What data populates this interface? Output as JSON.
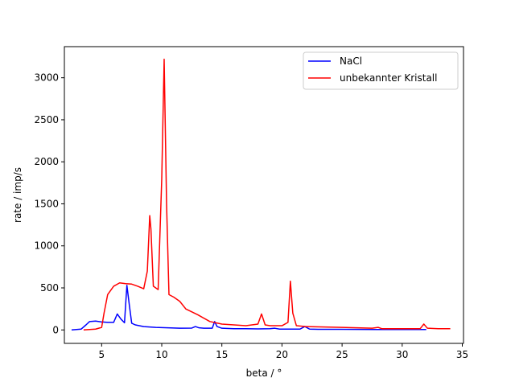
{
  "chart_data": {
    "type": "line",
    "xlabel": "beta / °",
    "ylabel": "rate / imp/s",
    "xlim": [
      1.9,
      35.1
    ],
    "ylim": [
      -160,
      3370
    ],
    "xticks": [
      5,
      10,
      15,
      20,
      25,
      30,
      35
    ],
    "yticks": [
      0,
      500,
      1000,
      1500,
      2000,
      2500,
      3000
    ],
    "grid": false,
    "legend_position": "top-right",
    "series": [
      {
        "name": "NaCl",
        "color": "#0000ff",
        "x": [
          2.5,
          3.3,
          3.7,
          4.0,
          4.5,
          5.0,
          5.5,
          6.0,
          6.3,
          6.6,
          6.9,
          7.1,
          7.3,
          7.5,
          7.8,
          8.5,
          9.5,
          10.5,
          11.5,
          12.5,
          12.8,
          13.1,
          13.5,
          14.2,
          14.4,
          14.6,
          15.0,
          16.0,
          17.0,
          18.0,
          19.0,
          19.4,
          19.8,
          21.5,
          21.9,
          22.3,
          23.0,
          25.0,
          28.0,
          30.0,
          31.0,
          32.0
        ],
        "y": [
          0,
          10,
          60,
          100,
          105,
          95,
          90,
          90,
          190,
          130,
          85,
          530,
          300,
          80,
          60,
          40,
          30,
          25,
          20,
          22,
          40,
          25,
          20,
          20,
          100,
          40,
          20,
          15,
          15,
          12,
          15,
          20,
          10,
          10,
          40,
          10,
          8,
          8,
          5,
          5,
          5,
          5
        ]
      },
      {
        "name": "unbekannter Kristall",
        "color": "#ff0000",
        "x": [
          3.5,
          4.5,
          5.0,
          5.2,
          5.5,
          6.0,
          6.5,
          7.0,
          7.5,
          8.0,
          8.5,
          8.8,
          9.0,
          9.1,
          9.3,
          9.7,
          10.0,
          10.2,
          10.4,
          10.6,
          11.0,
          11.5,
          12.0,
          13.0,
          14.0,
          15.0,
          17.0,
          18.0,
          18.3,
          18.6,
          19.0,
          20.0,
          20.5,
          20.7,
          20.9,
          21.2,
          22.0,
          25.0,
          27.5,
          28.0,
          28.3,
          30.0,
          31.5,
          31.8,
          32.1,
          33.0,
          34.0
        ],
        "y": [
          0,
          10,
          30,
          200,
          420,
          520,
          560,
          550,
          545,
          520,
          490,
          700,
          1360,
          1200,
          520,
          480,
          1800,
          3220,
          1500,
          420,
          390,
          340,
          250,
          180,
          100,
          70,
          50,
          70,
          190,
          60,
          50,
          50,
          90,
          580,
          200,
          50,
          40,
          30,
          20,
          30,
          15,
          15,
          15,
          70,
          20,
          15,
          15
        ]
      }
    ]
  }
}
